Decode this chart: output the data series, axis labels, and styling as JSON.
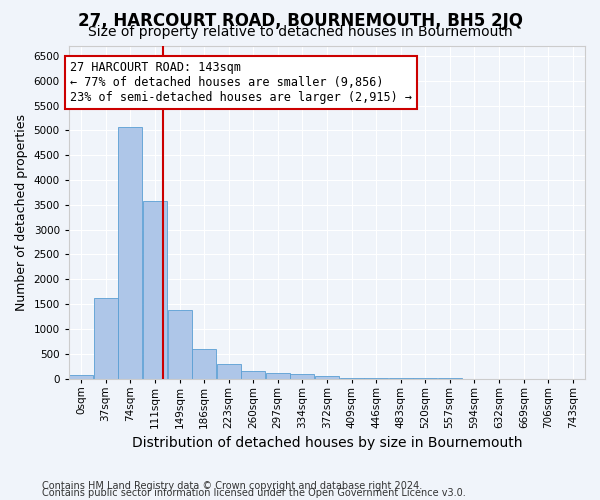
{
  "title": "27, HARCOURT ROAD, BOURNEMOUTH, BH5 2JQ",
  "subtitle": "Size of property relative to detached houses in Bournemouth",
  "xlabel": "Distribution of detached houses by size in Bournemouth",
  "ylabel": "Number of detached properties",
  "bin_labels": [
    "0sqm",
    "37sqm",
    "74sqm",
    "111sqm",
    "149sqm",
    "186sqm",
    "223sqm",
    "260sqm",
    "297sqm",
    "334sqm",
    "372sqm",
    "409sqm",
    "446sqm",
    "483sqm",
    "520sqm",
    "557sqm",
    "594sqm",
    "632sqm",
    "669sqm",
    "706sqm",
    "743sqm"
  ],
  "bin_edges": [
    0,
    37,
    74,
    111,
    149,
    186,
    223,
    260,
    297,
    334,
    372,
    409,
    446,
    483,
    520,
    557,
    594,
    632,
    669,
    706,
    743,
    780
  ],
  "bar_heights": [
    65,
    1620,
    5060,
    3580,
    1380,
    590,
    295,
    155,
    120,
    90,
    55,
    10,
    10,
    5,
    5,
    5,
    0,
    0,
    0,
    0,
    0
  ],
  "bar_color": "#aec6e8",
  "bar_edge_color": "#5a9fd4",
  "vline_x": 143,
  "vline_color": "#cc0000",
  "annotation_text": "27 HARCOURT ROAD: 143sqm\n← 77% of detached houses are smaller (9,856)\n23% of semi-detached houses are larger (2,915) →",
  "annotation_box_color": "#ffffff",
  "annotation_box_edge": "#cc0000",
  "ylim": [
    0,
    6700
  ],
  "yticks": [
    0,
    500,
    1000,
    1500,
    2000,
    2500,
    3000,
    3500,
    4000,
    4500,
    5000,
    5500,
    6000,
    6500
  ],
  "background_color": "#f0f4fa",
  "grid_color": "#ffffff",
  "footer_line1": "Contains HM Land Registry data © Crown copyright and database right 2024.",
  "footer_line2": "Contains public sector information licensed under the Open Government Licence v3.0.",
  "title_fontsize": 12,
  "subtitle_fontsize": 10,
  "xlabel_fontsize": 10,
  "ylabel_fontsize": 9,
  "tick_fontsize": 7.5,
  "annotation_fontsize": 8.5,
  "footer_fontsize": 7
}
